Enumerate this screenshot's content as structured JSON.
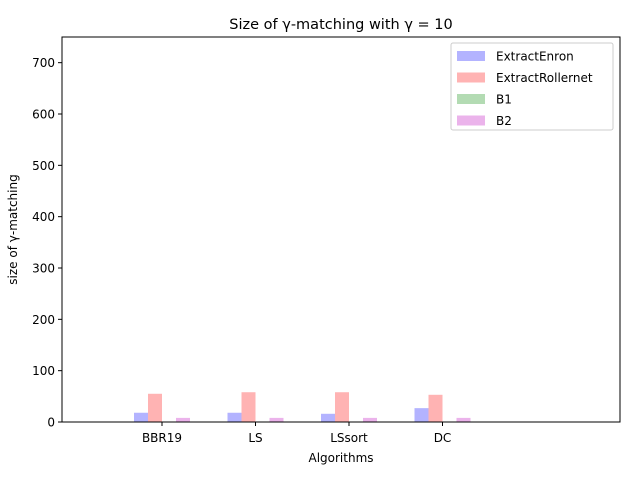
{
  "chart_data": {
    "type": "bar",
    "title": "Size of γ-matching with γ = 10",
    "xlabel": "Algorithms",
    "ylabel": "size of γ-matching",
    "categories": [
      "BBR19",
      "LS",
      "LSsort",
      "DC"
    ],
    "ylim": [
      0,
      750
    ],
    "yticks": [
      0,
      100,
      200,
      300,
      400,
      500,
      600,
      700
    ],
    "grid": false,
    "legend_position": "top-right",
    "series": [
      {
        "name": "ExtractEnron",
        "color": "#b3b3ff",
        "values": [
          18,
          18,
          16,
          27
        ]
      },
      {
        "name": "ExtractRollernet",
        "color": "#ffb3b3",
        "values": [
          55,
          58,
          58,
          53
        ]
      },
      {
        "name": "B1",
        "color": "#b3dbb3",
        "values": [
          0,
          0,
          0,
          0
        ]
      },
      {
        "name": "B2",
        "color": "#ebb3eb",
        "values": [
          8,
          8,
          8,
          8
        ]
      }
    ]
  }
}
